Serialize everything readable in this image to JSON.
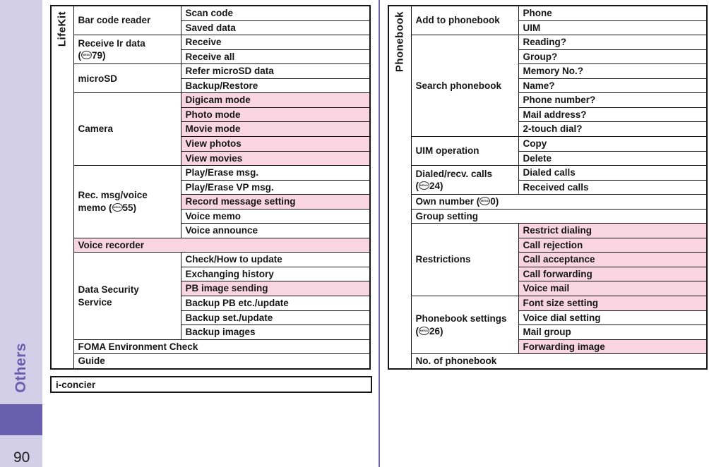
{
  "sidebar": {
    "label": "Others",
    "page_number": "90"
  },
  "standalone_box": {
    "label": "i-concier"
  },
  "menu_icon_label": "MENU",
  "colors": {
    "highlight_pink": "#f9d5e2",
    "sidebar_lavender": "#d4cfe8",
    "accent_purple": "#6a5fae",
    "divider_purple": "#6c6cb4"
  },
  "tables": [
    {
      "header": "LifeKit",
      "groups": [
        {
          "category": "Bar code reader",
          "items": [
            {
              "label": "Scan code",
              "highlight": false
            },
            {
              "label": "Saved data",
              "highlight": false
            }
          ]
        },
        {
          "category": "Receive Ir data\n({menu}79)",
          "items": [
            {
              "label": "Receive",
              "highlight": false
            },
            {
              "label": "Receive all",
              "highlight": false
            }
          ]
        },
        {
          "category": "microSD",
          "items": [
            {
              "label": "Refer microSD data",
              "highlight": false
            },
            {
              "label": "Backup/Restore",
              "highlight": false
            }
          ]
        },
        {
          "category": "Camera",
          "items": [
            {
              "label": "Digicam mode",
              "highlight": true
            },
            {
              "label": "Photo mode",
              "highlight": true
            },
            {
              "label": "Movie mode",
              "highlight": true
            },
            {
              "label": "View photos",
              "highlight": true
            },
            {
              "label": "View movies",
              "highlight": true
            }
          ]
        },
        {
          "category": "Rec. msg/voice\nmemo ({menu}55)",
          "items": [
            {
              "label": "Play/Erase msg.",
              "highlight": false
            },
            {
              "label": "Play/Erase VP msg.",
              "highlight": false
            },
            {
              "label": "Record message setting",
              "highlight": true
            },
            {
              "label": "Voice memo",
              "highlight": false
            },
            {
              "label": "Voice announce",
              "highlight": false
            }
          ]
        },
        {
          "category": "Voice recorder",
          "full_row": true,
          "highlight": true
        },
        {
          "category": "Data Security\nService",
          "items": [
            {
              "label": "Check/How to update",
              "highlight": false
            },
            {
              "label": "Exchanging history",
              "highlight": false
            },
            {
              "label": "PB image sending",
              "highlight": true
            },
            {
              "label": "Backup PB etc./update",
              "highlight": false
            },
            {
              "label": "Backup set./update",
              "highlight": false
            },
            {
              "label": "Backup images",
              "highlight": false
            }
          ]
        },
        {
          "category": "FOMA Environment Check",
          "full_row": true,
          "highlight": false
        },
        {
          "category": "Guide",
          "full_row": true,
          "highlight": false
        }
      ]
    },
    {
      "header": "Phonebook",
      "groups": [
        {
          "category": "Add to phonebook",
          "items": [
            {
              "label": "Phone",
              "highlight": false
            },
            {
              "label": "UIM",
              "highlight": false
            }
          ]
        },
        {
          "category": "Search phonebook",
          "items": [
            {
              "label": "Reading?",
              "highlight": false
            },
            {
              "label": "Group?",
              "highlight": false
            },
            {
              "label": "Memory No.?",
              "highlight": false
            },
            {
              "label": "Name?",
              "highlight": false
            },
            {
              "label": "Phone number?",
              "highlight": false
            },
            {
              "label": "Mail address?",
              "highlight": false
            },
            {
              "label": "2-touch dial?",
              "highlight": false
            }
          ]
        },
        {
          "category": "UIM operation",
          "items": [
            {
              "label": "Copy",
              "highlight": false
            },
            {
              "label": "Delete",
              "highlight": false
            }
          ]
        },
        {
          "category": "Dialed/recv. calls\n({menu}24)",
          "items": [
            {
              "label": "Dialed calls",
              "highlight": false
            },
            {
              "label": "Received calls",
              "highlight": false
            }
          ]
        },
        {
          "category": "Own number ({menu}0)",
          "full_row": true,
          "highlight": false
        },
        {
          "category": "Group setting",
          "full_row": true,
          "highlight": false
        },
        {
          "category": "Restrictions",
          "items": [
            {
              "label": "Restrict dialing",
              "highlight": true
            },
            {
              "label": "Call rejection",
              "highlight": true
            },
            {
              "label": "Call acceptance",
              "highlight": true
            },
            {
              "label": "Call forwarding",
              "highlight": true
            },
            {
              "label": "Voice mail",
              "highlight": true
            }
          ]
        },
        {
          "category": "Phonebook settings\n({menu}26)",
          "items": [
            {
              "label": "Font size setting",
              "highlight": true
            },
            {
              "label": "Voice dial setting",
              "highlight": false
            },
            {
              "label": "Mail group",
              "highlight": false
            },
            {
              "label": "Forwarding image",
              "highlight": true
            }
          ]
        },
        {
          "category": "No. of phonebook",
          "full_row": true,
          "highlight": false
        }
      ]
    }
  ]
}
